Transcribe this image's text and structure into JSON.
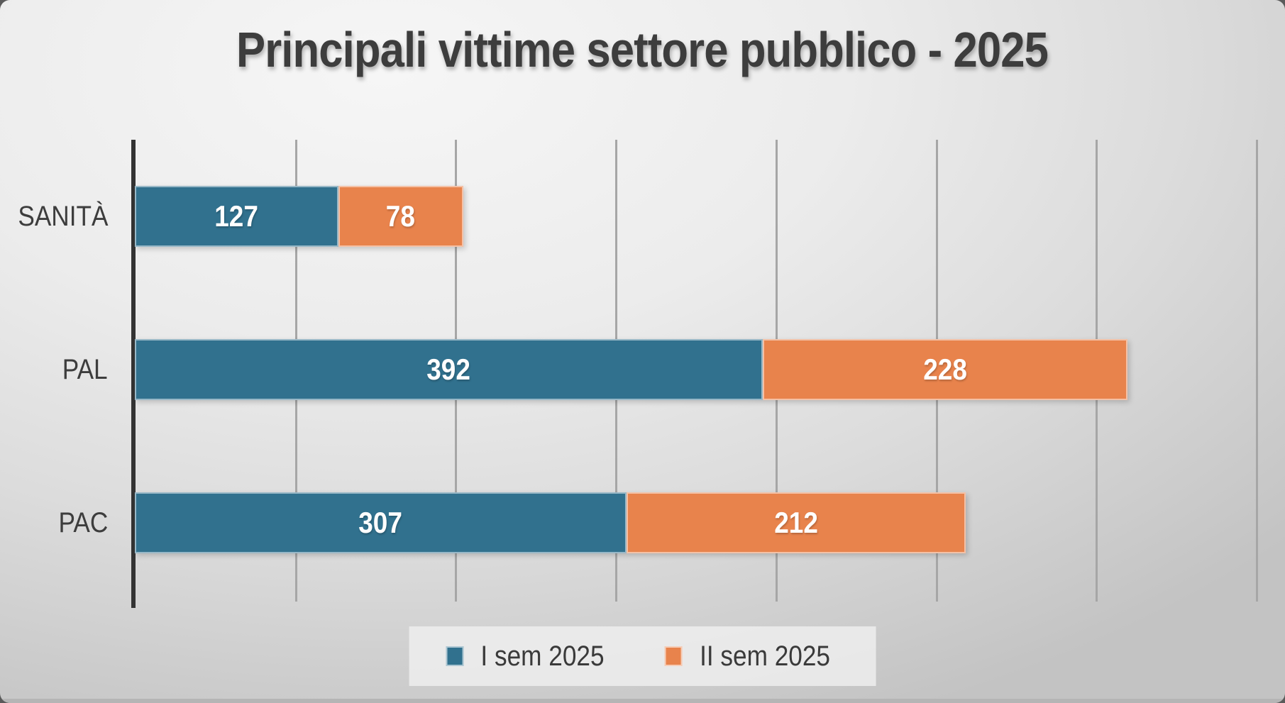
{
  "chart_data": {
    "type": "bar",
    "orientation": "horizontal",
    "stacked": true,
    "title": "Principali vittime settore pubblico - 2025",
    "categories": [
      "SANITÀ",
      "PAL",
      "PAC"
    ],
    "series": [
      {
        "name": "I sem 2025",
        "color": "#31718E",
        "values": [
          127,
          392,
          307
        ]
      },
      {
        "name": "II sem 2025",
        "color": "#E8834C",
        "values": [
          78,
          228,
          212
        ]
      }
    ],
    "xlim": [
      0,
      700
    ],
    "gridline_step": 100,
    "grid": true,
    "axis_labels_visible": false,
    "legend_position": "bottom-center",
    "value_labels": "inside-center",
    "value_label_color": "#ffffff",
    "title_color": "#3d3d3d",
    "gridline_color": "#a6a6a6",
    "axis_line_color": "#333333"
  }
}
